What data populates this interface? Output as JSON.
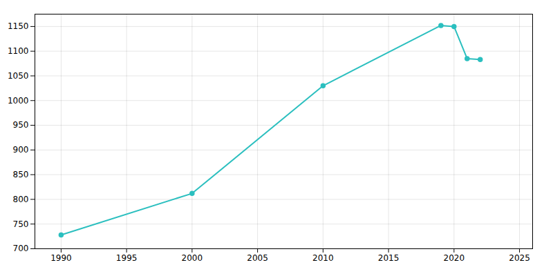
{
  "chart_data": {
    "type": "line",
    "x": [
      1990,
      2000,
      2010,
      2019,
      2020,
      2021,
      2022
    ],
    "values": [
      728,
      812,
      1030,
      1152,
      1150,
      1085,
      1083
    ],
    "color": "#2bbfbf",
    "marker": "circle",
    "xlim": [
      1988,
      2026
    ],
    "xticks": [
      1990,
      1995,
      2000,
      2005,
      2010,
      2015,
      2020,
      2025
    ],
    "ylim": [
      700,
      1175
    ],
    "yticks": [
      700,
      750,
      800,
      850,
      900,
      950,
      1000,
      1050,
      1100,
      1150
    ],
    "grid": true
  }
}
